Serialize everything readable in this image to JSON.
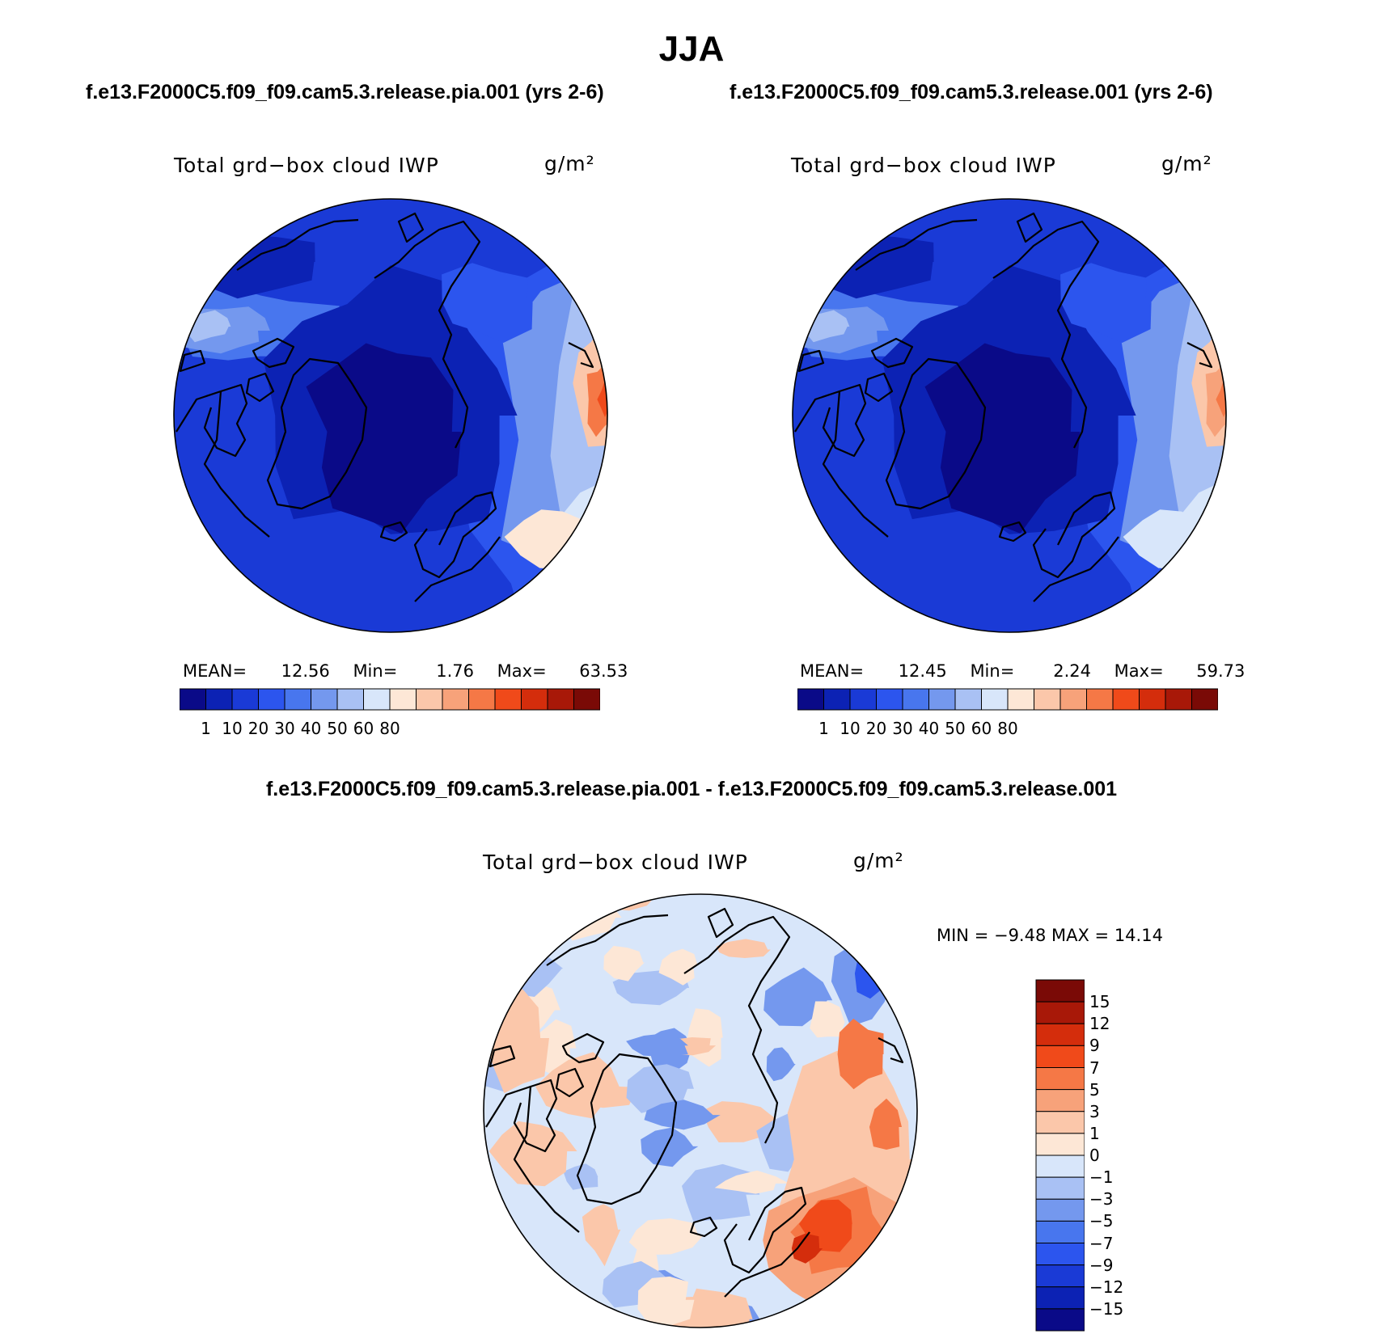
{
  "title": "JJA",
  "case_left": "f.e13.F2000C5.f09_f09.cam5.3.release.pia.001 (yrs 2-6)",
  "case_right": "f.e13.F2000C5.f09_f09.cam5.3.release.001 (yrs 2-6)",
  "diff_title": "f.e13.F2000C5.f09_f09.cam5.3.release.pia.001 - f.e13.F2000C5.f09_f09.cam5.3.release.001",
  "panels": [
    {
      "variable": "Total grd−box cloud IWP",
      "units": "g/m²",
      "mean_label": "MEAN=",
      "mean": "12.56",
      "min_label": "Min=",
      "min": "1.76",
      "max_label": "Max=",
      "max": "63.53"
    },
    {
      "variable": "Total grd−box cloud IWP",
      "units": "g/m²",
      "mean_label": "MEAN=",
      "mean": "12.45",
      "min_label": "Min=",
      "min": "2.24",
      "max_label": "Max=",
      "max": "59.73"
    }
  ],
  "diff_panel": {
    "variable": "Total grd−box cloud IWP",
    "units": "g/m²",
    "minmax": "MIN =   −9.48 MAX =   14.14"
  },
  "chart_data": [
    {
      "type": "heatmap",
      "title": "Total grd-box cloud IWP (pia.001, yrs 2-6)",
      "projection": "north polar stereographic",
      "units": "g/m2",
      "mean": 12.56,
      "min": 1.76,
      "max": 63.53,
      "levels": [
        1,
        10,
        20,
        30,
        40,
        50,
        60,
        80
      ],
      "level_labels": [
        "1",
        "10",
        "20",
        "30",
        "40",
        "50",
        "60",
        "80"
      ],
      "colors": [
        "#0a0a88",
        "#0c22b4",
        "#1a3ad6",
        "#2c55ee",
        "#4876ee",
        "#7498ee",
        "#a9c1f4",
        "#d8e6fa",
        "#fde7d6",
        "#fbc7aa",
        "#f7a27a",
        "#f57846",
        "#f04a1a",
        "#d42d0c",
        "#a81808",
        "#7a0a06"
      ]
    },
    {
      "type": "heatmap",
      "title": "Total grd-box cloud IWP (release.001, yrs 2-6)",
      "projection": "north polar stereographic",
      "units": "g/m2",
      "mean": 12.45,
      "min": 2.24,
      "max": 59.73,
      "levels": [
        1,
        10,
        20,
        30,
        40,
        50,
        60,
        80
      ],
      "level_labels": [
        "1",
        "10",
        "20",
        "30",
        "40",
        "50",
        "60",
        "80"
      ],
      "colors": [
        "#0a0a88",
        "#0c22b4",
        "#1a3ad6",
        "#2c55ee",
        "#4876ee",
        "#7498ee",
        "#a9c1f4",
        "#d8e6fa",
        "#fde7d6",
        "#fbc7aa",
        "#f7a27a",
        "#f57846",
        "#f04a1a",
        "#d42d0c",
        "#a81808",
        "#7a0a06"
      ]
    },
    {
      "type": "heatmap",
      "title": "Total grd-box cloud IWP difference",
      "projection": "north polar stereographic",
      "units": "g/m2",
      "min": -9.48,
      "max": 14.14,
      "levels": [
        15,
        12,
        9,
        7,
        5,
        3,
        1,
        0,
        -1,
        -3,
        -5,
        -7,
        -9,
        -12,
        -15
      ],
      "level_labels": [
        "15",
        "12",
        "9",
        "7",
        "5",
        "3",
        "1",
        "0",
        "−1",
        "−3",
        "−5",
        "−7",
        "−9",
        "−12",
        "−15"
      ],
      "colors": [
        "#7a0a06",
        "#a81808",
        "#d42d0c",
        "#f04a1a",
        "#f57846",
        "#f7a27a",
        "#fbc7aa",
        "#fde7d6",
        "#d8e6fa",
        "#a9c1f4",
        "#7498ee",
        "#4876ee",
        "#2c55ee",
        "#1a3ad6",
        "#0c22b4",
        "#0a0a88"
      ]
    }
  ]
}
